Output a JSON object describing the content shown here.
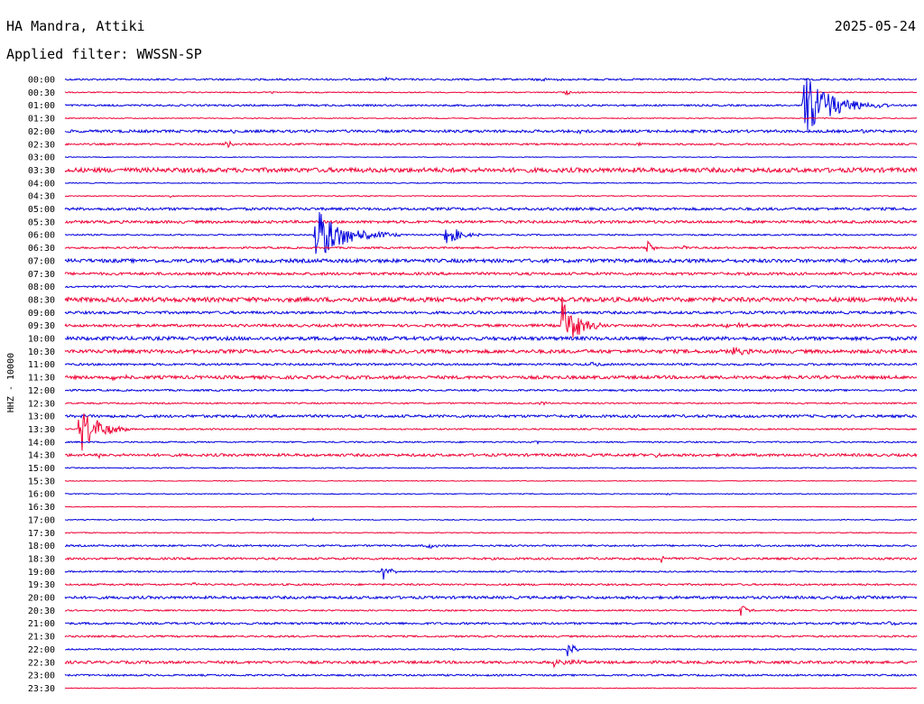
{
  "header": {
    "station": "HA Mandra, Attiki",
    "date": "2025-05-24",
    "filter_prefix": "Applied filter: ",
    "filter": "WWSSN-SP"
  },
  "chart_data": {
    "type": "line",
    "title": "HA Mandra, Attiki",
    "ylabel": "HHZ - 10000",
    "x_range_minutes": [
      0,
      30
    ],
    "line_colors": [
      "#0000dd",
      "#ee0033"
    ],
    "time_labels": [
      "00:00",
      "00:30",
      "01:00",
      "01:30",
      "02:00",
      "02:30",
      "03:00",
      "03:30",
      "04:00",
      "04:30",
      "05:00",
      "05:30",
      "06:00",
      "06:30",
      "07:00",
      "07:30",
      "08:00",
      "08:30",
      "09:00",
      "09:30",
      "10:00",
      "10:30",
      "11:00",
      "11:30",
      "12:00",
      "12:30",
      "13:00",
      "13:30",
      "14:00",
      "14:30",
      "15:00",
      "15:30",
      "16:00",
      "16:30",
      "17:00",
      "17:30",
      "18:00",
      "18:30",
      "19:00",
      "19:30",
      "20:00",
      "20:30",
      "21:00",
      "21:30",
      "22:00",
      "22:30",
      "23:00",
      "23:30"
    ],
    "noise_levels": [
      1,
      0.6,
      1,
      0.5,
      1.5,
      1,
      0.4,
      2.5,
      0.5,
      0.5,
      1.5,
      1.5,
      0.8,
      1,
      2,
      1.5,
      1,
      2.5,
      1.5,
      1.5,
      2,
      2,
      1.2,
      1.8,
      1,
      0.8,
      1.5,
      0.8,
      0.8,
      1.5,
      0.6,
      0.4,
      0.5,
      0.4,
      0.5,
      0.5,
      1,
      1.2,
      0.8,
      1,
      1.5,
      0.8,
      1.2,
      1,
      0.8,
      1.5,
      1,
      0.4
    ],
    "events": [
      {
        "row": 0,
        "minute": 11.3,
        "amplitude": 3,
        "duration": 0.3
      },
      {
        "row": 0,
        "minute": 16.5,
        "amplitude": 2,
        "duration": 1.8
      },
      {
        "row": 1,
        "minute": 7.3,
        "amplitude": 2,
        "duration": 0.3
      },
      {
        "row": 1,
        "minute": 17.6,
        "amplitude": 3,
        "duration": 0.8
      },
      {
        "row": 2,
        "minute": 26.0,
        "amplitude": 35,
        "duration": 3
      },
      {
        "row": 4,
        "minute": 5.8,
        "amplitude": 3,
        "duration": 0.4
      },
      {
        "row": 4,
        "minute": 18.0,
        "amplitude": 2,
        "duration": 1.2
      },
      {
        "row": 4,
        "minute": 28.0,
        "amplitude": 4,
        "duration": 0.5
      },
      {
        "row": 5,
        "minute": 5.7,
        "amplitude": 5,
        "duration": 0.8
      },
      {
        "row": 5,
        "minute": 20.2,
        "amplitude": 4,
        "duration": 0.2
      },
      {
        "row": 9,
        "minute": 3.7,
        "amplitude": 2,
        "duration": 0.3
      },
      {
        "row": 12,
        "minute": 8.8,
        "amplitude": 30,
        "duration": 3
      },
      {
        "row": 12,
        "minute": 13.4,
        "amplitude": 15,
        "duration": 1.2
      },
      {
        "row": 13,
        "minute": 20.5,
        "amplitude": 9,
        "duration": 0.5
      },
      {
        "row": 13,
        "minute": 21.8,
        "amplitude": 3,
        "duration": 0.5
      },
      {
        "row": 19,
        "minute": 17.5,
        "amplitude": 30,
        "duration": 1.6
      },
      {
        "row": 19,
        "minute": 23.3,
        "amplitude": 3,
        "duration": 2.5
      },
      {
        "row": 21,
        "minute": 23.5,
        "amplitude": 5,
        "duration": 1.2
      },
      {
        "row": 22,
        "minute": 18.5,
        "amplitude": 5,
        "duration": 0.6
      },
      {
        "row": 23,
        "minute": 1.7,
        "amplitude": 5,
        "duration": 1.0
      },
      {
        "row": 25,
        "minute": 16.7,
        "amplitude": 3,
        "duration": 0.9
      },
      {
        "row": 27,
        "minute": 0.5,
        "amplitude": 30,
        "duration": 1.8
      },
      {
        "row": 27,
        "minute": 29.5,
        "amplitude": 2,
        "duration": 0.3
      },
      {
        "row": 28,
        "minute": 16.6,
        "amplitude": 3,
        "duration": 0.4
      },
      {
        "row": 29,
        "minute": 1.2,
        "amplitude": 3,
        "duration": 0.5
      },
      {
        "row": 29,
        "minute": 20.8,
        "amplitude": 4,
        "duration": 0.5
      },
      {
        "row": 32,
        "minute": 21.2,
        "amplitude": 3,
        "duration": 0.2
      },
      {
        "row": 34,
        "minute": 8.7,
        "amplitude": 3,
        "duration": 0.2
      },
      {
        "row": 36,
        "minute": 12.7,
        "amplitude": 4,
        "duration": 1.0
      },
      {
        "row": 37,
        "minute": 19.0,
        "amplitude": 3,
        "duration": 0.3
      },
      {
        "row": 37,
        "minute": 21.0,
        "amplitude": 5,
        "duration": 0.6
      },
      {
        "row": 38,
        "minute": 11.2,
        "amplitude": 10,
        "duration": 0.6
      },
      {
        "row": 39,
        "minute": 4.5,
        "amplitude": 2,
        "duration": 1.0
      },
      {
        "row": 41,
        "minute": 23.8,
        "amplitude": 8,
        "duration": 0.6
      },
      {
        "row": 42,
        "minute": 7.2,
        "amplitude": 2,
        "duration": 0.3
      },
      {
        "row": 42,
        "minute": 29.0,
        "amplitude": 2,
        "duration": 1.2
      },
      {
        "row": 44,
        "minute": 7.8,
        "amplitude": 3,
        "duration": 0.4
      },
      {
        "row": 44,
        "minute": 17.7,
        "amplitude": 10,
        "duration": 0.7
      },
      {
        "row": 45,
        "minute": 17.2,
        "amplitude": 5,
        "duration": 1.8
      }
    ]
  }
}
